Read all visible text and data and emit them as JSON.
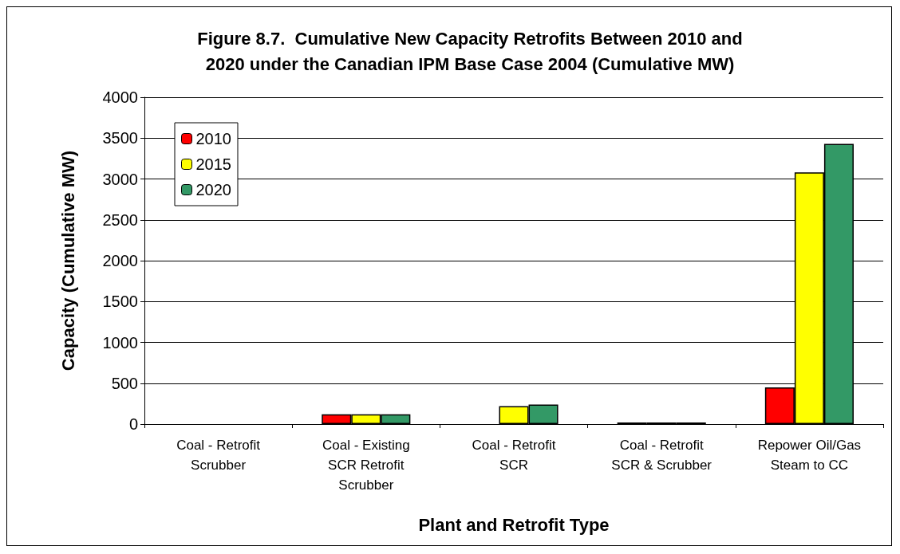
{
  "chart_data": {
    "type": "bar",
    "title": "Figure 8.7.  Cumulative New Capacity Retrofits Between 2010 and\n2020 under the Canadian IPM Base Case 2004 (Cumulative MW)",
    "xlabel": "Plant and Retrofit Type",
    "ylabel": "Capacity (Cumulative MW)",
    "categories": [
      "Coal - Retrofit\nScrubber",
      "Coal - Existing\nSCR Retrofit\nScrubber",
      "Coal - Retrofit\nSCR",
      "Coal - Retrofit\nSCR & Scrubber",
      "Repower Oil/Gas\nSteam to CC"
    ],
    "series": [
      {
        "name": "2010",
        "color": "#ff0000",
        "values": [
          0,
          120,
          0,
          20,
          450
        ]
      },
      {
        "name": "2015",
        "color": "#ffff00",
        "values": [
          0,
          120,
          220,
          20,
          3080
        ]
      },
      {
        "name": "2020",
        "color": "#339966",
        "values": [
          0,
          120,
          240,
          20,
          3430
        ]
      }
    ],
    "ylim": [
      0,
      4000
    ],
    "yticks": [
      0,
      500,
      1000,
      1500,
      2000,
      2500,
      3000,
      3500,
      4000
    ],
    "grid": "y",
    "legend": "top left"
  }
}
